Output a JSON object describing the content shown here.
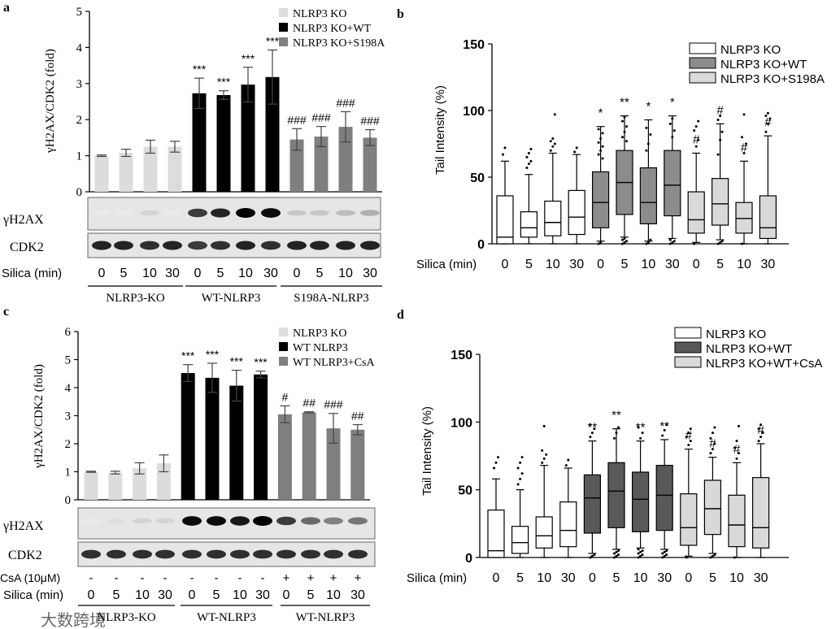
{
  "panel_a": {
    "letter": "a",
    "ylabel": "γH2AX/CDK2 (fold)",
    "legend": [
      "NLRP3 KO",
      "NLRP3 KO+WT",
      "NLRP3 KO+S198A"
    ],
    "blot_labels": [
      "γH2AX",
      "CDK2"
    ],
    "treatment_label": "Silica (min)",
    "group_labels": [
      "NLRP3-KO",
      "WT-NLRP3",
      "S198A-NLRP3"
    ],
    "sig_marks": [
      "",
      "",
      "",
      "",
      "***",
      "***",
      "***",
      "***",
      "###",
      "###",
      "###",
      "###"
    ]
  },
  "panel_b": {
    "letter": "b",
    "ylabel": "Tail Intensity (%)",
    "legend": [
      "NLRP3 KO",
      "NLRP3 KO+WT",
      "NLRP3 KO+S198A"
    ],
    "treatment_label": "Silica (min)",
    "sig_marks": [
      "",
      "",
      "",
      "",
      "*",
      "**",
      "*",
      "*",
      "#",
      "#",
      "#",
      "#"
    ]
  },
  "panel_c": {
    "letter": "c",
    "ylabel": "γH2AX/CDK2 (fold)",
    "legend": [
      "NLRP3 KO",
      "WT NLRP3",
      "WT NLRP3+CsA"
    ],
    "blot_labels": [
      "γH2AX",
      "CDK2"
    ],
    "csa_label": "CsA (10μM)",
    "csa_values": [
      "-",
      "-",
      "-",
      "-",
      "-",
      "-",
      "-",
      "-",
      "+",
      "+",
      "+",
      "+"
    ],
    "treatment_label": "Silica (min)",
    "group_labels": [
      "NLRP3-KO",
      "WT-NLRP3",
      "WT-NLRP3"
    ],
    "sig_marks": [
      "",
      "",
      "",
      "",
      "***",
      "***",
      "***",
      "***",
      "#",
      "##",
      "###",
      "##"
    ]
  },
  "panel_d": {
    "letter": "d",
    "ylabel": "Tail Intensity (%)",
    "legend": [
      "NLRP3 KO",
      "NLRP3 KO+WT",
      "NLRP3 KO+WT+CsA"
    ],
    "treatment_label": "Silica (min)",
    "sig_marks": [
      "",
      "",
      "",
      "",
      "**",
      "**",
      "**",
      "**",
      "#",
      "#",
      "#",
      "#"
    ]
  },
  "watermark": "大数跨境",
  "chart_data": [
    {
      "id": "a",
      "type": "bar",
      "categories": [
        "0",
        "5",
        "10",
        "30",
        "0",
        "5",
        "10",
        "30",
        "0",
        "5",
        "10",
        "30"
      ],
      "values": [
        1.0,
        1.08,
        1.25,
        1.25,
        2.73,
        2.68,
        2.97,
        3.18,
        1.45,
        1.53,
        1.8,
        1.5
      ],
      "errors": [
        0.02,
        0.1,
        0.18,
        0.15,
        0.42,
        0.12,
        0.48,
        0.75,
        0.3,
        0.28,
        0.42,
        0.22
      ],
      "series_index": [
        0,
        0,
        0,
        0,
        1,
        1,
        1,
        1,
        2,
        2,
        2,
        2
      ],
      "colors": [
        "#dcdcdc",
        "#000000",
        "#7f7f7f"
      ],
      "ylim": [
        0,
        5
      ],
      "yticks": [
        "0",
        "1",
        "2",
        "3",
        "4",
        "5"
      ]
    },
    {
      "id": "b",
      "type": "box",
      "categories": [
        "0",
        "5",
        "10",
        "30",
        "0",
        "5",
        "10",
        "30",
        "0",
        "5",
        "10",
        "30"
      ],
      "boxes": [
        {
          "min": 0,
          "q1": 0,
          "median": 5,
          "q3": 36,
          "max": 62,
          "outliers": [
            67,
            72
          ]
        },
        {
          "min": 0,
          "q1": 5,
          "median": 12,
          "q3": 24,
          "max": 52,
          "outliers": [
            57,
            60,
            62,
            65,
            68,
            71
          ]
        },
        {
          "min": 0,
          "q1": 6,
          "median": 16,
          "q3": 32,
          "max": 68,
          "outliers": [
            70,
            73,
            75,
            77,
            79,
            97
          ]
        },
        {
          "min": 0,
          "q1": 7,
          "median": 20,
          "q3": 40,
          "max": 67,
          "outliers": [
            69,
            72
          ]
        },
        {
          "min": 2,
          "q1": 12,
          "median": 31,
          "q3": 54,
          "max": 88,
          "outliers": [
            0,
            1,
            64,
            67,
            70,
            73,
            76,
            79,
            83,
            86
          ]
        },
        {
          "min": 5,
          "q1": 22,
          "median": 46,
          "q3": 70,
          "max": 96,
          "outliers": [
            0,
            1,
            2,
            3,
            4,
            77,
            80,
            84,
            88,
            92,
            95
          ]
        },
        {
          "min": 2,
          "q1": 15,
          "median": 31,
          "q3": 57,
          "max": 93,
          "outliers": [
            0,
            1,
            3,
            70,
            75,
            82,
            87
          ]
        },
        {
          "min": 4,
          "q1": 21,
          "median": 44,
          "q3": 70,
          "max": 96,
          "outliers": [
            0,
            1,
            2,
            3,
            80,
            85,
            90,
            94
          ]
        },
        {
          "min": 1,
          "q1": 8,
          "median": 18,
          "q3": 39,
          "max": 68,
          "outliers": [
            0,
            73,
            78,
            85,
            88,
            92
          ]
        },
        {
          "min": 3,
          "q1": 14,
          "median": 30,
          "q3": 49,
          "max": 90,
          "outliers": [
            0,
            1,
            2,
            67,
            78,
            84,
            93,
            96
          ]
        },
        {
          "min": 0,
          "q1": 8,
          "median": 19,
          "q3": 31,
          "max": 62,
          "outliers": [
            0,
            68,
            75,
            80,
            97
          ]
        },
        {
          "min": 0,
          "q1": 4,
          "median": 12,
          "q3": 36,
          "max": 81,
          "outliers": [
            84,
            90,
            94,
            96,
            98
          ]
        }
      ],
      "series_index": [
        0,
        0,
        0,
        0,
        1,
        1,
        1,
        1,
        2,
        2,
        2,
        2
      ],
      "colors": [
        "#ffffff",
        "#8c8c8c",
        "#d9d9d9"
      ],
      "ylim": [
        0,
        150
      ],
      "yticks": [
        "0",
        "50",
        "100",
        "150"
      ]
    },
    {
      "id": "c",
      "type": "bar",
      "categories": [
        "0",
        "5",
        "10",
        "30",
        "0",
        "5",
        "10",
        "30",
        "0",
        "5",
        "10",
        "30"
      ],
      "values": [
        1.0,
        0.97,
        1.12,
        1.3,
        4.52,
        4.35,
        4.07,
        4.47,
        3.05,
        3.12,
        2.55,
        2.5
      ],
      "errors": [
        0.02,
        0.05,
        0.2,
        0.3,
        0.3,
        0.52,
        0.55,
        0.12,
        0.3,
        0.02,
        0.53,
        0.18
      ],
      "series_index": [
        0,
        0,
        0,
        0,
        1,
        1,
        1,
        1,
        2,
        2,
        2,
        2
      ],
      "colors": [
        "#dcdcdc",
        "#000000",
        "#7f7f7f"
      ],
      "ylim": [
        0,
        6
      ],
      "yticks": [
        "0",
        "1",
        "2",
        "3",
        "4",
        "5",
        "6"
      ]
    },
    {
      "id": "d",
      "type": "box",
      "categories": [
        "0",
        "5",
        "10",
        "30",
        "0",
        "5",
        "10",
        "30",
        "0",
        "5",
        "10",
        "30"
      ],
      "boxes": [
        {
          "min": 0,
          "q1": 0,
          "median": 5,
          "q3": 35,
          "max": 58,
          "outliers": [
            66,
            70,
            74
          ]
        },
        {
          "min": 0,
          "q1": 3,
          "median": 11,
          "q3": 23,
          "max": 50,
          "outliers": [
            54,
            58,
            62,
            66,
            70,
            74
          ]
        },
        {
          "min": 0,
          "q1": 7,
          "median": 16,
          "q3": 30,
          "max": 68,
          "outliers": [
            70,
            73,
            76,
            79,
            97
          ]
        },
        {
          "min": 0,
          "q1": 8,
          "median": 20,
          "q3": 41,
          "max": 66,
          "outliers": [
            68,
            72
          ]
        },
        {
          "min": 3,
          "q1": 18,
          "median": 44,
          "q3": 61,
          "max": 86,
          "outliers": [
            0,
            1,
            2,
            89,
            92,
            95,
            98
          ]
        },
        {
          "min": 6,
          "q1": 22,
          "median": 49,
          "q3": 70,
          "max": 95,
          "outliers": [
            0,
            1,
            2,
            3,
            4,
            5,
            88,
            92,
            96
          ]
        },
        {
          "min": 7,
          "q1": 19,
          "median": 43,
          "q3": 63,
          "max": 86,
          "outliers": [
            0,
            1,
            2,
            3,
            4,
            5,
            6,
            88,
            92,
            96
          ]
        },
        {
          "min": 6,
          "q1": 20,
          "median": 46,
          "q3": 68,
          "max": 87,
          "outliers": [
            0,
            1,
            2,
            3,
            4,
            5,
            90,
            94,
            98
          ]
        },
        {
          "min": 1,
          "q1": 9,
          "median": 22,
          "q3": 47,
          "max": 80,
          "outliers": [
            0,
            83,
            86,
            89,
            92,
            95
          ]
        },
        {
          "min": 3,
          "q1": 17,
          "median": 36,
          "q3": 57,
          "max": 74,
          "outliers": [
            0,
            1,
            2,
            77,
            80,
            84,
            88,
            92,
            96
          ]
        },
        {
          "min": 0,
          "q1": 8,
          "median": 24,
          "q3": 46,
          "max": 70,
          "outliers": [
            0,
            73,
            77,
            81,
            86,
            97
          ]
        },
        {
          "min": 0,
          "q1": 7,
          "median": 22,
          "q3": 59,
          "max": 84,
          "outliers": [
            86,
            89,
            92,
            95,
            98
          ]
        }
      ],
      "series_index": [
        0,
        0,
        0,
        0,
        1,
        1,
        1,
        1,
        2,
        2,
        2,
        2
      ],
      "colors": [
        "#ffffff",
        "#595959",
        "#d9d9d9"
      ],
      "ylim": [
        0,
        150
      ],
      "yticks": [
        "0",
        "50",
        "100",
        "150"
      ]
    }
  ]
}
